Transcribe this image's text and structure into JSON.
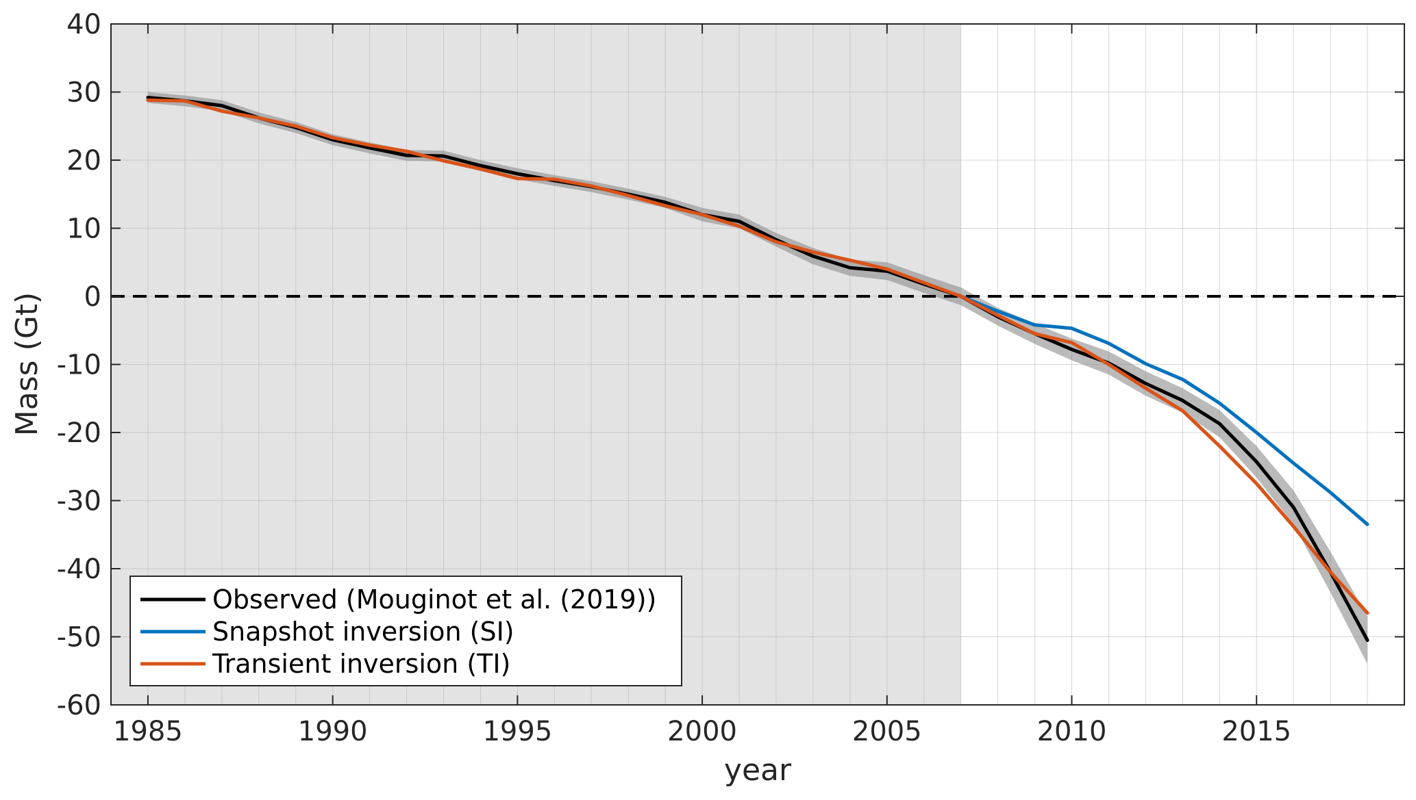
{
  "chart_data": {
    "type": "line",
    "title": "",
    "xlabel": "year",
    "ylabel": "Mass (Gt)",
    "xlim": [
      1984,
      2019
    ],
    "ylim": [
      -60,
      40
    ],
    "x_ticks": [
      1985,
      1990,
      1995,
      2000,
      2005,
      2010,
      2015
    ],
    "y_ticks": [
      -60,
      -50,
      -40,
      -30,
      -20,
      -10,
      0,
      10,
      20,
      30,
      40
    ],
    "grid": true,
    "shaded_period": [
      1984,
      2007
    ],
    "zero_line": {
      "y": 0,
      "style": "dashed"
    },
    "legend_position": "bottom-left",
    "x": [
      1985,
      1986,
      1987,
      1988,
      1989,
      1990,
      1991,
      1992,
      1993,
      1994,
      1995,
      1996,
      1997,
      1998,
      1999,
      2000,
      2001,
      2002,
      2003,
      2004,
      2005,
      2006,
      2007,
      2008,
      2009,
      2010,
      2011,
      2012,
      2013,
      2014,
      2015,
      2016,
      2017,
      2018
    ],
    "series": [
      {
        "name": "Observed (Mouginot et al. (2019))",
        "color": "#000000",
        "values": [
          29.2,
          28.7,
          28.0,
          26.2,
          24.8,
          23.0,
          21.8,
          20.7,
          20.6,
          19.2,
          18.0,
          17.0,
          16.1,
          15.0,
          13.8,
          12.0,
          11.0,
          8.3,
          5.9,
          4.2,
          3.7,
          1.8,
          0.0,
          -3.0,
          -5.5,
          -7.8,
          -9.8,
          -12.8,
          -15.3,
          -18.7,
          -24.3,
          -31.0,
          -40.5,
          -50.5
        ],
        "uncertainty": [
          0.8,
          0.8,
          0.8,
          0.8,
          0.8,
          0.8,
          0.8,
          0.8,
          0.8,
          0.8,
          0.8,
          0.8,
          0.8,
          0.8,
          0.8,
          1.0,
          1.0,
          1.0,
          1.2,
          1.2,
          1.3,
          1.3,
          1.3,
          1.3,
          1.5,
          1.6,
          1.7,
          1.8,
          1.8,
          2.0,
          2.3,
          2.5,
          3.0,
          3.5
        ]
      },
      {
        "name": "Snapshot inversion (SI)",
        "color": "#0072BD",
        "x": [
          2007,
          2008,
          2009,
          2010,
          2011,
          2012,
          2013,
          2014,
          2015,
          2016,
          2017,
          2018
        ],
        "values": [
          0.0,
          -2.2,
          -4.2,
          -4.7,
          -6.9,
          -9.9,
          -12.2,
          -15.7,
          -20.0,
          -24.5,
          -28.8,
          -33.5
        ]
      },
      {
        "name": "Transient inversion (TI)",
        "color": "#D95319",
        "values": [
          28.8,
          28.7,
          27.2,
          26.2,
          25.0,
          23.3,
          22.2,
          21.3,
          19.9,
          18.7,
          17.3,
          17.2,
          16.2,
          14.8,
          13.3,
          12.0,
          10.3,
          8.0,
          6.5,
          5.3,
          4.0,
          2.0,
          0.0,
          -2.8,
          -5.5,
          -6.8,
          -10.0,
          -13.5,
          -16.8,
          -22.0,
          -27.5,
          -33.8,
          -40.5,
          -46.5
        ]
      }
    ]
  }
}
